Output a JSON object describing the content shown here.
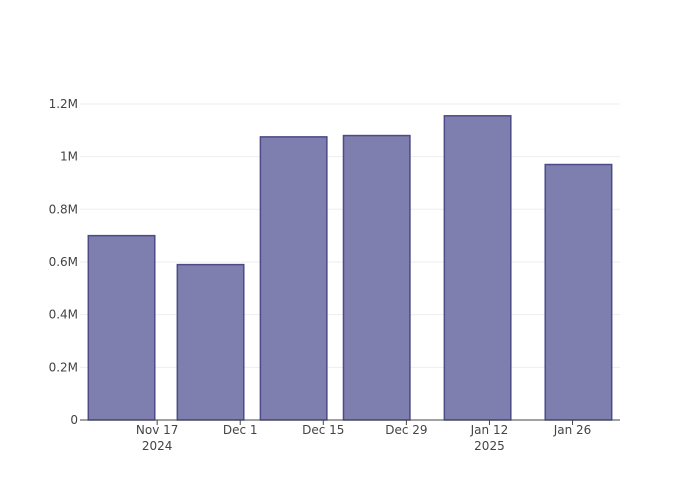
{
  "chart_data": {
    "type": "bar",
    "x": [
      "2024-11-11",
      "2024-11-26",
      "2024-12-10",
      "2024-12-24",
      "2025-01-10",
      "2025-01-27"
    ],
    "values": [
      700000,
      590000,
      1075000,
      1080000,
      1155000,
      970000
    ],
    "color": "#7f7faf",
    "line_color": "#4b4b88",
    "xlim": [
      "2024-11-04",
      "2025-02-03"
    ],
    "xticks": [
      {
        "value": "2024-11-17",
        "label": "Nov 17\n2024"
      },
      {
        "value": "2024-12-01",
        "label": "Dec 1"
      },
      {
        "value": "2024-12-15",
        "label": "Dec 15"
      },
      {
        "value": "2024-12-29",
        "label": "Dec 29"
      },
      {
        "value": "2025-01-12",
        "label": "Jan 12\n2025"
      },
      {
        "value": "2025-01-26",
        "label": "Jan 26"
      }
    ],
    "ylim": [
      0,
      1215000
    ],
    "yticks": [
      0,
      {
        "value": 200000,
        "label": "0.2M"
      },
      {
        "value": 400000,
        "label": "0.4M"
      },
      {
        "value": 600000,
        "label": "0.6M"
      },
      {
        "value": 800000,
        "label": "0.8M"
      },
      {
        "value": 1000000,
        "label": "1M"
      },
      {
        "value": 1200000,
        "label": "1.2M"
      }
    ],
    "grid": true
  }
}
